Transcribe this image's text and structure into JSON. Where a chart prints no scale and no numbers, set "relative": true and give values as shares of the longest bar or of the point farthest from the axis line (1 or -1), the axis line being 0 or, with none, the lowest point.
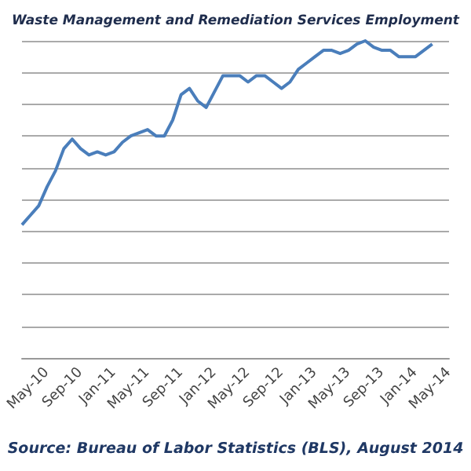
{
  "chart_data": {
    "type": "line",
    "title": "Waste Management and Remediation Services Employment",
    "annotations": [
      "Source: Bureau of Labor Statistics (BLS), August 2014"
    ],
    "relative": true,
    "grid": "y",
    "marker": "none",
    "line_style": "solid",
    "categories": [
      null,
      null,
      null,
      "May-10",
      null,
      null,
      null,
      "Sep-10",
      null,
      null,
      null,
      "Jan-11",
      null,
      null,
      null,
      "May-11",
      null,
      null,
      null,
      "Sep-11",
      null,
      null,
      null,
      "Jan-12",
      null,
      null,
      null,
      "May-12",
      null,
      null,
      null,
      "Sep-12",
      null,
      null,
      null,
      "Jan-13",
      null,
      null,
      null,
      "May-13",
      null,
      null,
      null,
      "Sep-13",
      null,
      null,
      null,
      "Jan-14",
      null,
      null,
      null,
      "May-14"
    ],
    "series": [
      {
        "color": "#4a7ebb",
        "values": [
          0.42,
          0.45,
          0.48,
          0.54,
          0.59,
          0.66,
          0.69,
          0.66,
          0.64,
          0.65,
          0.64,
          0.65,
          0.68,
          0.7,
          0.71,
          0.72,
          0.7,
          0.7,
          0.75,
          0.83,
          0.85,
          0.81,
          0.79,
          0.84,
          0.89,
          0.89,
          0.89,
          0.87,
          0.89,
          0.89,
          0.87,
          0.85,
          0.87,
          0.91,
          0.93,
          0.95,
          0.97,
          0.97,
          0.96,
          0.97,
          0.99,
          1,
          0.98,
          0.97,
          0.97,
          0.95,
          0.95,
          0.95,
          0.97,
          0.99,
          null,
          null
        ]
      }
    ]
  }
}
